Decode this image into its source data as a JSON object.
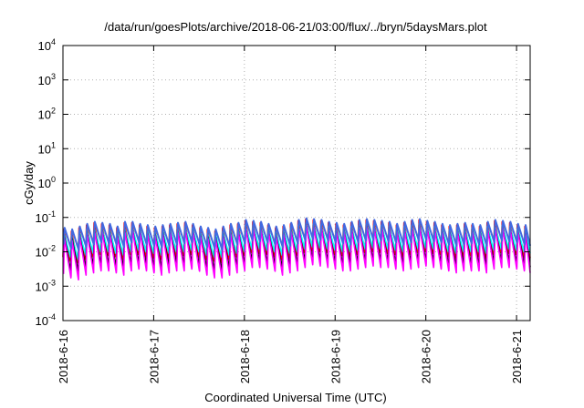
{
  "chart_data": {
    "type": "line",
    "title": "/data/run/goesPlots/archive/2018-06-21/03:00/flux/../bryn/5daysMars.plot",
    "xlabel": "Coordinated Universal Time (UTC)",
    "ylabel": "cGy/day",
    "y_scale": "log",
    "ylim": [
      0.0001,
      10000
    ],
    "xlim_days_from_2018_6_16": [
      0,
      5.15
    ],
    "grid": true,
    "legend": "none",
    "x_ticks": [
      "2018-6-16",
      "2018-6-17",
      "2018-6-18",
      "2018-6-19",
      "2018-6-20",
      "2018-6-21"
    ],
    "y_ticks": [
      {
        "base": "10",
        "exp": "-4"
      },
      {
        "base": "10",
        "exp": "-3"
      },
      {
        "base": "10",
        "exp": "-2"
      },
      {
        "base": "10",
        "exp": "-1"
      },
      {
        "base": "10",
        "exp": "0"
      },
      {
        "base": "10",
        "exp": "1"
      },
      {
        "base": "10",
        "exp": "2"
      },
      {
        "base": "10",
        "exp": "3"
      },
      {
        "base": "10",
        "exp": "4"
      }
    ],
    "cycle_period_days": 0.0833,
    "series": [
      {
        "color": "#ff0000",
        "peak_values": [
          0.045,
          0.04,
          0.05,
          0.06,
          0.07,
          0.065,
          0.06,
          0.05,
          0.07,
          0.07,
          0.06,
          0.055,
          0.05,
          0.055,
          0.06,
          0.065,
          0.07,
          0.06,
          0.05,
          0.045,
          0.04,
          0.05,
          0.06,
          0.065,
          0.08,
          0.075,
          0.07,
          0.06,
          0.05,
          0.055,
          0.065,
          0.08,
          0.09,
          0.085,
          0.08,
          0.07,
          0.065,
          0.06,
          0.07,
          0.08,
          0.085,
          0.08,
          0.075,
          0.07,
          0.06,
          0.07,
          0.08,
          0.085,
          0.075,
          0.07,
          0.06,
          0.055,
          0.06,
          0.065,
          0.06,
          0.055,
          0.07,
          0.08,
          0.075,
          0.07,
          0.06,
          0.055
        ],
        "trough_ratio": 0.12
      },
      {
        "color": "#00ffff",
        "peak_values": [
          0.035,
          0.03,
          0.04,
          0.045,
          0.05,
          0.05,
          0.045,
          0.04,
          0.05,
          0.055,
          0.05,
          0.045,
          0.04,
          0.045,
          0.05,
          0.05,
          0.055,
          0.05,
          0.04,
          0.035,
          0.035,
          0.04,
          0.045,
          0.05,
          0.06,
          0.06,
          0.055,
          0.05,
          0.04,
          0.045,
          0.05,
          0.06,
          0.07,
          0.065,
          0.06,
          0.055,
          0.05,
          0.05,
          0.055,
          0.06,
          0.065,
          0.06,
          0.06,
          0.055,
          0.05,
          0.055,
          0.06,
          0.065,
          0.06,
          0.055,
          0.05,
          0.045,
          0.05,
          0.05,
          0.05,
          0.045,
          0.055,
          0.06,
          0.06,
          0.055,
          0.05,
          0.045
        ],
        "trough_ratio": 0.2
      },
      {
        "color": "#000000",
        "peak_values": [
          0.03,
          0.028,
          0.035,
          0.04,
          0.045,
          0.045,
          0.04,
          0.035,
          0.045,
          0.05,
          0.045,
          0.04,
          0.035,
          0.04,
          0.045,
          0.045,
          0.05,
          0.045,
          0.035,
          0.03,
          0.03,
          0.035,
          0.04,
          0.045,
          0.055,
          0.055,
          0.05,
          0.045,
          0.035,
          0.04,
          0.045,
          0.055,
          0.065,
          0.06,
          0.055,
          0.05,
          0.045,
          0.045,
          0.05,
          0.055,
          0.06,
          0.055,
          0.055,
          0.05,
          0.045,
          0.05,
          0.055,
          0.06,
          0.055,
          0.05,
          0.045,
          0.04,
          0.045,
          0.045,
          0.045,
          0.04,
          0.05,
          0.055,
          0.055,
          0.05,
          0.045,
          0.04
        ],
        "trough_ratio": 0.09
      },
      {
        "color": "#ff00ff",
        "peak_values": [
          0.025,
          0.022,
          0.03,
          0.035,
          0.04,
          0.04,
          0.035,
          0.03,
          0.04,
          0.045,
          0.04,
          0.035,
          0.03,
          0.035,
          0.04,
          0.04,
          0.045,
          0.04,
          0.03,
          0.025,
          0.025,
          0.03,
          0.035,
          0.04,
          0.05,
          0.05,
          0.045,
          0.04,
          0.03,
          0.035,
          0.04,
          0.05,
          0.06,
          0.055,
          0.05,
          0.045,
          0.04,
          0.04,
          0.045,
          0.05,
          0.055,
          0.05,
          0.05,
          0.045,
          0.04,
          0.045,
          0.05,
          0.055,
          0.05,
          0.045,
          0.04,
          0.035,
          0.04,
          0.04,
          0.04,
          0.035,
          0.045,
          0.05,
          0.05,
          0.045,
          0.04,
          0.035
        ],
        "trough_ratio": 0.07
      },
      {
        "color": "#4169e1",
        "peak_values": [
          0.05,
          0.045,
          0.055,
          0.065,
          0.075,
          0.07,
          0.065,
          0.055,
          0.075,
          0.075,
          0.065,
          0.06,
          0.055,
          0.06,
          0.065,
          0.07,
          0.075,
          0.065,
          0.055,
          0.05,
          0.045,
          0.055,
          0.065,
          0.07,
          0.085,
          0.08,
          0.075,
          0.065,
          0.055,
          0.06,
          0.07,
          0.085,
          0.095,
          0.09,
          0.085,
          0.075,
          0.07,
          0.065,
          0.075,
          0.085,
          0.09,
          0.085,
          0.08,
          0.075,
          0.065,
          0.075,
          0.085,
          0.09,
          0.08,
          0.075,
          0.065,
          0.06,
          0.065,
          0.07,
          0.065,
          0.06,
          0.075,
          0.085,
          0.08,
          0.075,
          0.065,
          0.06
        ],
        "trough_ratio": 0.25
      }
    ]
  }
}
